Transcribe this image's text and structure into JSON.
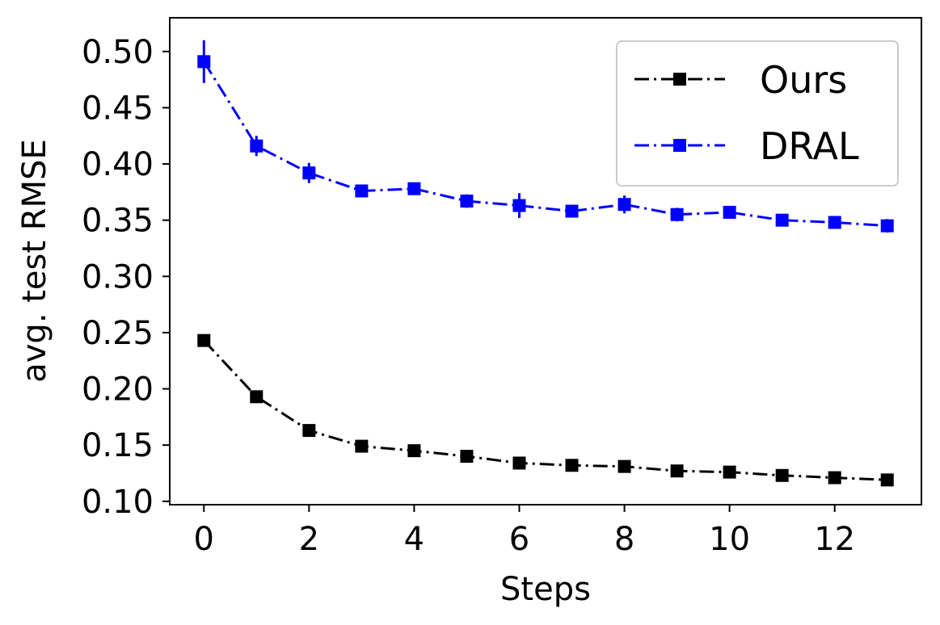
{
  "chart_data": {
    "type": "line",
    "title": "",
    "xlabel": "Steps",
    "ylabel": "avg. test RMSE",
    "xlim": [
      -0.65,
      13.65
    ],
    "ylim": [
      0.097,
      0.53
    ],
    "xticks": [
      0,
      2,
      4,
      6,
      8,
      10,
      12
    ],
    "xtick_labels": [
      "0",
      "2",
      "4",
      "6",
      "8",
      "10",
      "12"
    ],
    "yticks": [
      0.1,
      0.15,
      0.2,
      0.25,
      0.3,
      0.35,
      0.4,
      0.45,
      0.5
    ],
    "ytick_labels": [
      "0.10",
      "0.15",
      "0.20",
      "0.25",
      "0.30",
      "0.35",
      "0.40",
      "0.45",
      "0.50"
    ],
    "grid": false,
    "legend_position": "top-right",
    "x": [
      0,
      1,
      2,
      3,
      4,
      5,
      6,
      7,
      8,
      9,
      10,
      11,
      12,
      13
    ],
    "series": [
      {
        "name": "Ours",
        "color": "#000000",
        "marker": "square",
        "linestyle": "dash-dot",
        "values": [
          0.243,
          0.193,
          0.163,
          0.149,
          0.145,
          0.14,
          0.134,
          0.132,
          0.131,
          0.127,
          0.126,
          0.123,
          0.121,
          0.119
        ],
        "errors": [
          0.004,
          0.003,
          0.003,
          0.002,
          0.002,
          0.002,
          0.002,
          0.002,
          0.002,
          0.002,
          0.002,
          0.002,
          0.002,
          0.002
        ]
      },
      {
        "name": "DRAL",
        "color": "#0000ff",
        "marker": "square",
        "linestyle": "dash-dot",
        "values": [
          0.491,
          0.416,
          0.392,
          0.376,
          0.378,
          0.367,
          0.363,
          0.358,
          0.364,
          0.355,
          0.357,
          0.35,
          0.348,
          0.345
        ],
        "errors": [
          0.019,
          0.009,
          0.009,
          0.004,
          0.005,
          0.006,
          0.011,
          0.004,
          0.008,
          0.006,
          0.005,
          0.004,
          0.004,
          0.006
        ]
      }
    ]
  }
}
